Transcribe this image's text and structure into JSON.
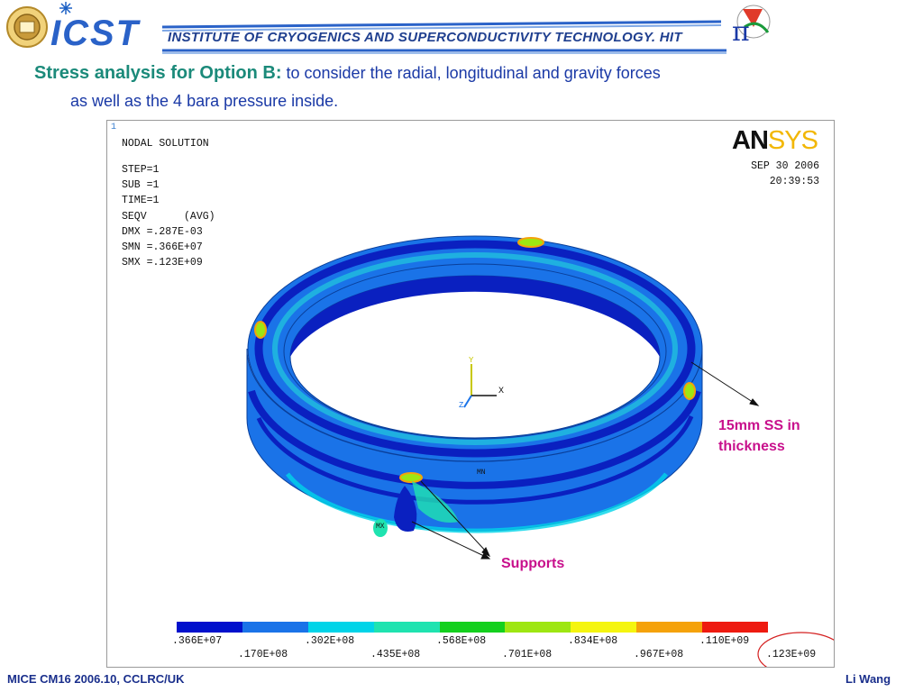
{
  "header": {
    "brand": "ICST",
    "institute": "INSTITUTE OF CRYOGENICS AND SUPERCONDUCTIVITY TECHNOLOGY. HIT",
    "pi_glyph": "π"
  },
  "slide": {
    "title_bold": "Stress analysis for Option B:",
    "title_rest": " to consider the radial, longitudinal and gravity forces",
    "title_line2": "as well as the 4 bara pressure inside."
  },
  "ansys": {
    "corner_mark": "1",
    "solution_title": "NODAL SOLUTION",
    "params": [
      "STEP=1",
      "SUB =1",
      "TIME=1",
      "SEQV      (AVG)",
      "DMX =.287E-03",
      "SMN =.366E+07",
      "SMX =.123E+09"
    ],
    "logo_an": "AN",
    "logo_sys": "SYS",
    "date": "SEP 30 2006",
    "time": "20:39:53",
    "axis_x": "X",
    "axis_y": "Y",
    "axis_z": "Z",
    "mn_mark": "MN",
    "mx_mark": "MX"
  },
  "legend": {
    "colors": [
      "#0011cc",
      "#1a73e8",
      "#00d4e8",
      "#1fe3b0",
      "#14d01e",
      "#9ee612",
      "#f5f50f",
      "#f5a20a",
      "#ee1a10"
    ],
    "top_labels": [
      ".366E+07",
      ".302E+08",
      ".568E+08",
      ".834E+08",
      ".110E+09"
    ],
    "bottom_labels": [
      ".170E+08",
      ".435E+08",
      ".701E+08",
      ".967E+08",
      ".123E+09"
    ]
  },
  "annotations": {
    "thickness_line1": "15mm SS in",
    "thickness_line2": "thickness",
    "supports": "Supports"
  },
  "footer": {
    "left": "MICE CM16 2006.10, CCLRC/UK",
    "right": "Li Wang"
  }
}
